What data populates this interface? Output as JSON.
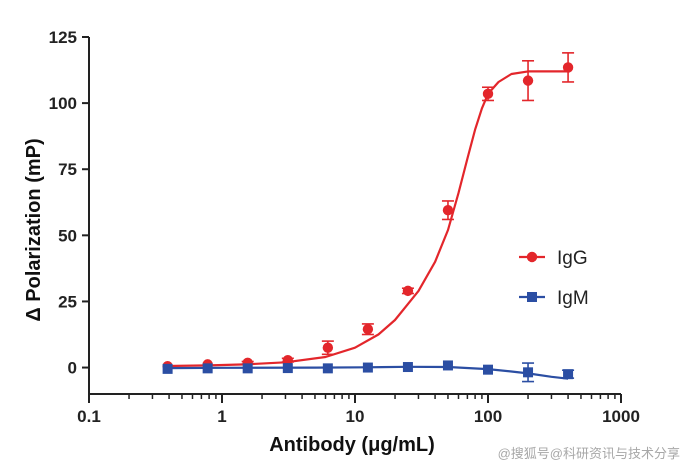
{
  "chart_data": {
    "type": "scatter",
    "xlabel": "Antibody (μg/mL)",
    "ylabel": "Δ Polarization (mP)",
    "x_scale": "log",
    "xlim": [
      0.1,
      1000
    ],
    "ylim": [
      -10,
      125
    ],
    "x_ticks": [
      "0.1",
      "1",
      "10",
      "100",
      "1000"
    ],
    "y_ticks": [
      "0",
      "25",
      "50",
      "75",
      "100",
      "125"
    ],
    "grid": false,
    "legend_position": "right",
    "series": [
      {
        "name": "IgG",
        "color": "#e3262b",
        "marker": "circle",
        "points": [
          {
            "x": 0.39,
            "y": 0.5,
            "err": 0
          },
          {
            "x": 0.78,
            "y": 1.2,
            "err": 0
          },
          {
            "x": 1.56,
            "y": 1.8,
            "err": 0.5
          },
          {
            "x": 3.125,
            "y": 2.8,
            "err": 0.7
          },
          {
            "x": 6.25,
            "y": 7.5,
            "err": 2.5
          },
          {
            "x": 12.5,
            "y": 14.5,
            "err": 2
          },
          {
            "x": 25,
            "y": 29,
            "err": 1
          },
          {
            "x": 50,
            "y": 59.5,
            "err": 3.5
          },
          {
            "x": 100,
            "y": 103.5,
            "err": 2.5
          },
          {
            "x": 200,
            "y": 108.5,
            "err": 7.5
          },
          {
            "x": 400,
            "y": 113.5,
            "err": 5.5
          }
        ],
        "curve": [
          [
            0.39,
            0.6
          ],
          [
            0.8,
            0.8
          ],
          [
            1.5,
            1.2
          ],
          [
            3,
            2
          ],
          [
            6,
            4
          ],
          [
            10,
            7.5
          ],
          [
            15,
            12.5
          ],
          [
            20,
            18
          ],
          [
            25,
            24
          ],
          [
            30,
            29
          ],
          [
            40,
            40
          ],
          [
            50,
            52
          ],
          [
            60,
            66
          ],
          [
            70,
            79
          ],
          [
            80,
            90
          ],
          [
            90,
            98
          ],
          [
            100,
            103.5
          ],
          [
            120,
            108
          ],
          [
            150,
            111
          ],
          [
            200,
            112
          ],
          [
            300,
            112
          ],
          [
            400,
            112
          ]
        ]
      },
      {
        "name": "IgM",
        "color": "#2b4ea3",
        "marker": "square",
        "points": [
          {
            "x": 0.39,
            "y": -0.5,
            "err": 0
          },
          {
            "x": 0.78,
            "y": -0.3,
            "err": 0
          },
          {
            "x": 1.56,
            "y": -0.3,
            "err": 0
          },
          {
            "x": 3.125,
            "y": -0.2,
            "err": 0
          },
          {
            "x": 6.25,
            "y": -0.3,
            "err": 0
          },
          {
            "x": 12.5,
            "y": 0,
            "err": 0
          },
          {
            "x": 25,
            "y": 0.2,
            "err": 0
          },
          {
            "x": 50,
            "y": 0.8,
            "err": 0
          },
          {
            "x": 100,
            "y": -0.8,
            "err": 0
          },
          {
            "x": 200,
            "y": -1.8,
            "err": 3.5
          },
          {
            "x": 400,
            "y": -2.5,
            "err": 1.5
          }
        ],
        "curve": [
          [
            0.39,
            -0.2
          ],
          [
            1,
            -0.1
          ],
          [
            5,
            0
          ],
          [
            12,
            0.1
          ],
          [
            25,
            0.3
          ],
          [
            50,
            0.2
          ],
          [
            100,
            -0.6
          ],
          [
            150,
            -1.5
          ],
          [
            200,
            -2.2
          ],
          [
            300,
            -3.5
          ],
          [
            400,
            -4.2
          ]
        ]
      }
    ]
  },
  "watermark": "@搜狐号@科研资讯与技术分享"
}
